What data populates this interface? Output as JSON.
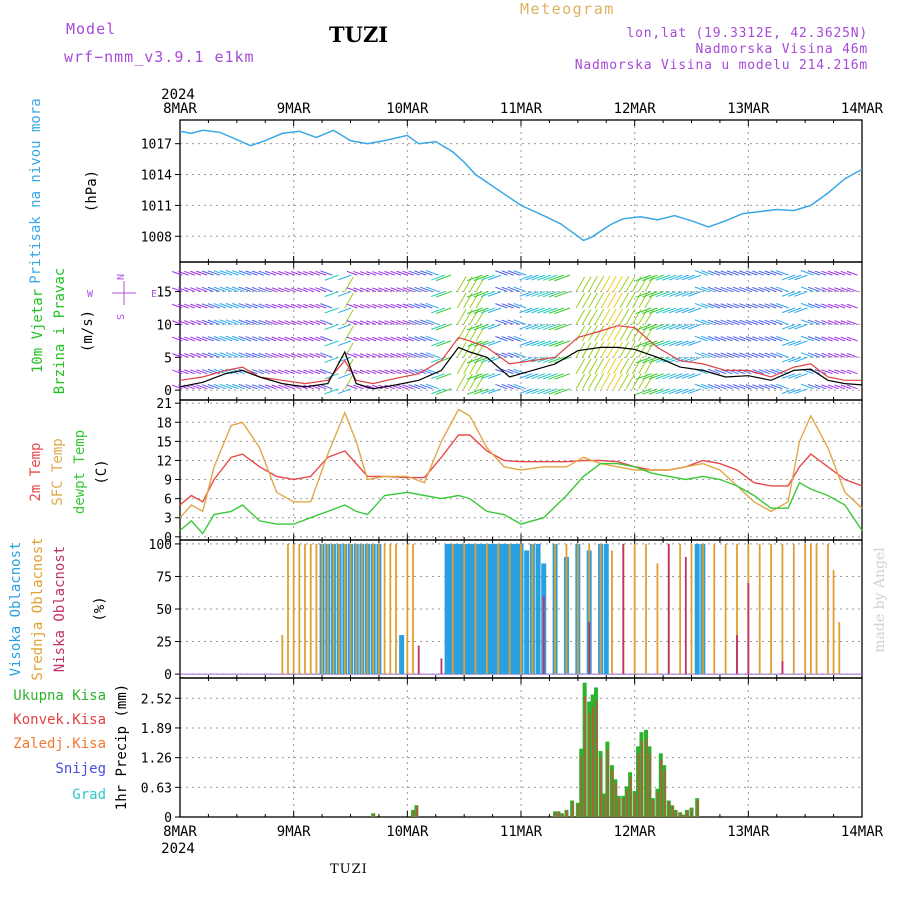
{
  "header": {
    "model_label": "Model",
    "model_name": "wrf−nmm_v3.9.1  e1km",
    "station": "TUZI",
    "meteogram_label": "Meteogram",
    "lonlat": "lon,lat (19.3312E, 42.3625N)",
    "elevation": "Nadmorska Visina 46m",
    "model_elevation": "Nadmorska Visina u modelu 214.216m"
  },
  "footer": {
    "station": "TUZI",
    "watermark": "made by Angel"
  },
  "colors": {
    "pressure": "#3aa8e6",
    "wind_label": "#22c222",
    "temp2m": "#e84a4a",
    "sfc": "#e0a84a",
    "dew": "#3ac83a",
    "high_cloud": "#2aa0e0",
    "mid_cloud": "#e0a030",
    "low_cloud": "#c0306a",
    "precip_total": "#2cb32c",
    "precip_conv": "#e04040",
    "precip_frozen": "#f07a30",
    "snow": "#4a4ae0",
    "grad": "#30c8c8",
    "wind_gust": "#e04040",
    "wind_speed": "#000000",
    "axis_purple": "#b050e0"
  },
  "chart_data": [
    {
      "type": "line",
      "panel": "pressure",
      "ylabel": [
        "Pritisak na nivou mora",
        "(hPa)"
      ],
      "yticks": [
        1008,
        1011,
        1014,
        1017
      ],
      "ylim": [
        1005.5,
        1019.3
      ],
      "x_days": [
        "8MAR",
        "9MAR",
        "10MAR",
        "11MAR",
        "12MAR",
        "13MAR",
        "14MAR"
      ],
      "year": "2024",
      "x": [
        0,
        0.1,
        0.2,
        0.35,
        0.5,
        0.62,
        0.75,
        0.9,
        1.05,
        1.2,
        1.35,
        1.5,
        1.65,
        1.8,
        2.0,
        2.1,
        2.25,
        2.4,
        2.5,
        2.6,
        2.8,
        3.0,
        3.2,
        3.35,
        3.45,
        3.55,
        3.62,
        3.7,
        3.8,
        3.9,
        4.05,
        4.2,
        4.35,
        4.5,
        4.65,
        4.8,
        4.95,
        5.1,
        5.25,
        5.4,
        5.55,
        5.7,
        5.85,
        6.0
      ],
      "series": [
        {
          "values": [
            1018.2,
            1018.0,
            1018.3,
            1018.1,
            1017.4,
            1016.8,
            1017.3,
            1018.0,
            1018.2,
            1017.6,
            1018.3,
            1017.3,
            1017.0,
            1017.3,
            1017.8,
            1017.0,
            1017.2,
            1016.2,
            1015.2,
            1014.0,
            1012.5,
            1011.0,
            1010.0,
            1009.2,
            1008.4,
            1007.6,
            1007.9,
            1008.5,
            1009.2,
            1009.7,
            1009.9,
            1009.6,
            1010.0,
            1009.5,
            1008.9,
            1009.5,
            1010.2,
            1010.4,
            1010.6,
            1010.5,
            1011.0,
            1012.2,
            1013.6,
            1014.5
          ]
        }
      ]
    },
    {
      "type": "line",
      "panel": "wind",
      "ylabel": [
        "10m Vjetar",
        "Brzina i Pravac",
        "(m/s)"
      ],
      "compass": {
        "n": "N",
        "s": "S",
        "e": "E",
        "w": "W"
      },
      "yticks": [
        0,
        5,
        10,
        15
      ],
      "ylim": [
        -1.5,
        19.5
      ],
      "x": [
        0,
        0.2,
        0.4,
        0.55,
        0.7,
        0.9,
        1.1,
        1.3,
        1.45,
        1.55,
        1.7,
        1.9,
        2.1,
        2.3,
        2.45,
        2.55,
        2.7,
        2.9,
        3.1,
        3.3,
        3.5,
        3.7,
        3.85,
        4.0,
        4.2,
        4.4,
        4.6,
        4.8,
        5.0,
        5.2,
        5.4,
        5.55,
        5.7,
        5.85,
        6.0
      ],
      "series": [
        {
          "kind": "gust",
          "values": [
            1.5,
            2.0,
            3.0,
            3.5,
            2.0,
            1.5,
            1.0,
            1.5,
            4.5,
            1.5,
            1.0,
            1.8,
            2.5,
            4.5,
            8.0,
            7.5,
            6.5,
            4.0,
            4.5,
            5.0,
            8.0,
            9.0,
            9.8,
            9.5,
            6.5,
            4.5,
            4.0,
            3.0,
            3.0,
            2.0,
            3.5,
            4.0,
            2.0,
            1.5,
            1.5
          ]
        },
        {
          "kind": "speed",
          "values": [
            0.5,
            1.2,
            2.5,
            3.0,
            2.0,
            1.0,
            0.5,
            1.0,
            5.8,
            1.0,
            0.2,
            0.8,
            1.5,
            3.0,
            6.5,
            5.8,
            5.0,
            2.0,
            3.0,
            4.0,
            6.0,
            6.5,
            6.5,
            6.2,
            5.0,
            3.5,
            3.0,
            2.0,
            2.2,
            1.5,
            3.0,
            3.2,
            1.5,
            1.0,
            0.8
          ]
        }
      ]
    },
    {
      "type": "line",
      "panel": "temperature",
      "ylabel": [
        "2m Temp",
        "SFC Temp",
        "dewpt Temp",
        "(C)"
      ],
      "yticks": [
        0,
        3,
        6,
        9,
        12,
        15,
        18,
        21
      ],
      "ylim": [
        -0.5,
        21.5
      ],
      "x": [
        0,
        0.1,
        0.2,
        0.3,
        0.45,
        0.55,
        0.7,
        0.85,
        1.0,
        1.15,
        1.3,
        1.45,
        1.55,
        1.65,
        1.8,
        2.0,
        2.15,
        2.3,
        2.45,
        2.55,
        2.7,
        2.85,
        3.0,
        3.2,
        3.4,
        3.55,
        3.7,
        3.85,
        4.0,
        4.15,
        4.3,
        4.45,
        4.6,
        4.75,
        4.9,
        5.05,
        5.2,
        5.35,
        5.45,
        5.55,
        5.7,
        5.85,
        6.0
      ],
      "series": [
        {
          "name": "2m Temp",
          "values": [
            5,
            6.5,
            5.5,
            9,
            12.5,
            13,
            11,
            9.5,
            9,
            9.5,
            12.5,
            13.5,
            11.5,
            9.5,
            9.5,
            9.3,
            9.3,
            12.5,
            16,
            16,
            13.5,
            12,
            11.8,
            11.8,
            11.8,
            12,
            12,
            11.8,
            11,
            10.5,
            10.5,
            11,
            12,
            11.5,
            10.5,
            8.5,
            8,
            8,
            11,
            13,
            11,
            9,
            8
          ]
        },
        {
          "name": "SFC Temp",
          "values": [
            3,
            5,
            4,
            11,
            17.5,
            18,
            14,
            7,
            5.5,
            5.5,
            13,
            19.5,
            15,
            9,
            9.5,
            9.5,
            8.5,
            15,
            20,
            19,
            14,
            11,
            10.5,
            11,
            11,
            12.5,
            11.5,
            11,
            10.5,
            10.5,
            10.5,
            11,
            11.5,
            10.5,
            8,
            5.5,
            4,
            5.5,
            15,
            19,
            14,
            7,
            4.5
          ]
        },
        {
          "name": "dewpt Temp",
          "values": [
            1,
            2.5,
            0.5,
            3.5,
            4,
            5,
            2.5,
            2,
            2,
            3,
            4,
            5,
            4,
            3.5,
            6.5,
            7,
            6.5,
            6,
            6.5,
            6,
            4,
            3.5,
            2,
            3,
            6.5,
            9.5,
            11.5,
            11.5,
            11,
            10,
            9.5,
            9,
            9.5,
            9,
            8,
            6.5,
            4.5,
            4.5,
            8.5,
            7.5,
            6.5,
            5,
            1
          ]
        }
      ]
    },
    {
      "type": "bar",
      "panel": "cloud",
      "ylabel": [
        "Visoka Oblacnost",
        "Srednja Oblacnost",
        "Niska Oblacnost",
        "(%)"
      ],
      "yticks": [
        0,
        25,
        50,
        75,
        100
      ],
      "ylim": [
        -3,
        103
      ],
      "series": [
        {
          "name": "Visoka Oblacnost",
          "x": [
            1.25,
            1.3,
            1.35,
            1.4,
            1.45,
            1.5,
            1.55,
            1.6,
            1.65,
            1.7,
            1.75,
            1.95,
            2.35,
            2.38,
            2.41,
            2.44,
            2.47,
            2.5,
            2.53,
            2.56,
            2.6,
            2.63,
            2.66,
            2.7,
            2.73,
            2.76,
            2.8,
            2.83,
            2.86,
            2.9,
            2.93,
            2.97,
            3.0,
            3.05,
            3.1,
            3.15,
            3.2,
            3.3,
            3.4,
            3.5,
            3.6,
            3.7,
            3.75,
            4.55,
            4.6
          ],
          "values": [
            100,
            100,
            100,
            100,
            100,
            100,
            100,
            100,
            100,
            100,
            100,
            30,
            100,
            100,
            100,
            100,
            100,
            100,
            100,
            100,
            100,
            100,
            100,
            100,
            100,
            100,
            100,
            100,
            100,
            100,
            100,
            100,
            100,
            95,
            100,
            100,
            85,
            100,
            90,
            100,
            95,
            100,
            100,
            100,
            100
          ]
        },
        {
          "name": "Srednja Oblacnost",
          "x": [
            0.9,
            0.95,
            1.0,
            1.05,
            1.1,
            1.15,
            1.2,
            1.25,
            1.3,
            1.35,
            1.4,
            1.45,
            1.5,
            1.55,
            1.6,
            1.65,
            1.7,
            1.75,
            1.8,
            1.85,
            1.9,
            2.0,
            2.05,
            2.4,
            2.5,
            2.6,
            2.7,
            2.8,
            2.9,
            3.0,
            3.1,
            3.2,
            3.3,
            3.4,
            3.5,
            3.6,
            3.7,
            3.8,
            3.9,
            4.0,
            4.1,
            4.2,
            4.3,
            4.4,
            4.5,
            4.6,
            4.7,
            4.8,
            4.9,
            5.0,
            5.1,
            5.2,
            5.3,
            5.4,
            5.5,
            5.55,
            5.6,
            5.7,
            5.75,
            5.8
          ],
          "values": [
            30,
            100,
            100,
            100,
            100,
            100,
            100,
            100,
            100,
            100,
            100,
            100,
            100,
            100,
            100,
            100,
            100,
            100,
            100,
            100,
            100,
            100,
            100,
            100,
            100,
            100,
            100,
            100,
            100,
            100,
            100,
            55,
            100,
            100,
            100,
            100,
            100,
            95,
            100,
            100,
            100,
            85,
            100,
            100,
            100,
            100,
            100,
            100,
            100,
            100,
            100,
            100,
            100,
            100,
            100,
            100,
            100,
            100,
            80,
            40
          ]
        },
        {
          "name": "Niska Oblacnost",
          "x": [
            2.1,
            2.3,
            3.2,
            3.6,
            3.9,
            4.3,
            4.45,
            4.9,
            5.0,
            5.3
          ],
          "values": [
            22,
            12,
            60,
            40,
            100,
            100,
            90,
            30,
            70,
            10
          ]
        }
      ]
    },
    {
      "type": "bar",
      "panel": "precip",
      "ylabel": [
        "1hr Precip (mm)"
      ],
      "legend": [
        "Ukupna Kisa",
        "Konvek.Kisa",
        "Zaledj.Kisa",
        "Snijeg",
        "Grad"
      ],
      "yticks": [
        0,
        0.63,
        1.26,
        1.89,
        2.52
      ],
      "ylim": [
        0,
        2.95
      ],
      "x": [
        1.7,
        2.05,
        2.08,
        3.3,
        3.33,
        3.36,
        3.4,
        3.45,
        3.5,
        3.53,
        3.56,
        3.6,
        3.63,
        3.66,
        3.7,
        3.73,
        3.76,
        3.8,
        3.83,
        3.86,
        3.9,
        3.93,
        3.96,
        4.0,
        4.03,
        4.06,
        4.1,
        4.13,
        4.16,
        4.2,
        4.23,
        4.26,
        4.3,
        4.33,
        4.36,
        4.4,
        4.43,
        4.46,
        4.5,
        4.55,
        4.6,
        4.65,
        4.7,
        4.73
      ],
      "series": [
        {
          "name": "Ukupna Kisa",
          "values": [
            0.08,
            0.15,
            0.25,
            0.12,
            0.12,
            0.08,
            0.15,
            0.35,
            0.3,
            1.45,
            2.85,
            2.45,
            2.6,
            2.75,
            1.4,
            0.5,
            1.6,
            1.1,
            0.8,
            0.45,
            0.45,
            0.65,
            0.95,
            0.55,
            1.5,
            1.8,
            1.85,
            1.5,
            0.4,
            0.6,
            1.35,
            1.1,
            0.35,
            0.25,
            0.15,
            0.1,
            0.05,
            0.15,
            0.2,
            0.4,
            0.0,
            0.0,
            0.0,
            0.0
          ]
        }
      ]
    }
  ]
}
